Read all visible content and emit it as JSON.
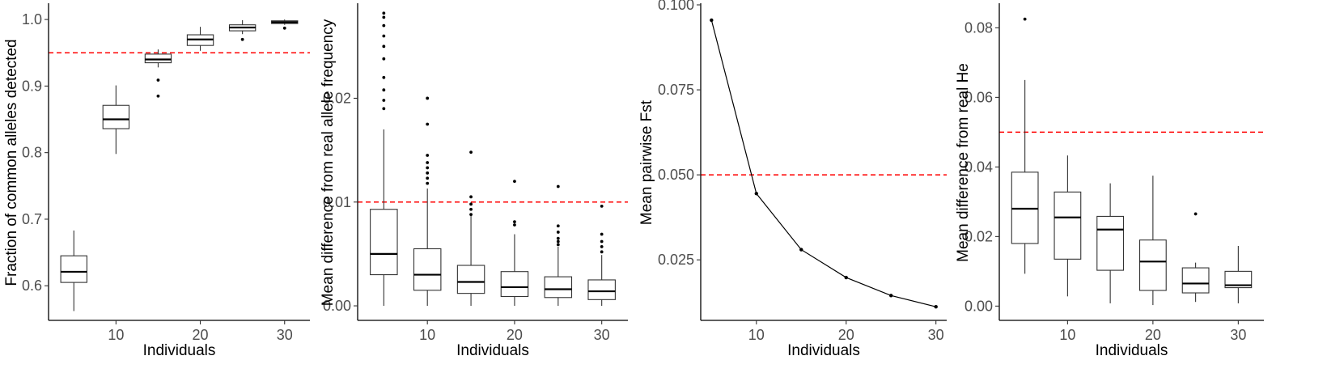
{
  "chart_data": [
    {
      "type": "box",
      "xlabel": "Individuals",
      "ylabel": "Fraction of common alleles detected",
      "x_ticks": [
        10,
        20,
        30
      ],
      "y_ticks": [
        "0.6",
        "0.7",
        "0.8",
        "0.9",
        "1.0"
      ],
      "y_tick_values": [
        0.6,
        0.7,
        0.8,
        0.9,
        1.0
      ],
      "xlim": [
        2,
        33
      ],
      "ylim": [
        0.548,
        1.022
      ],
      "grid": false,
      "reference_line": {
        "y": 0.95,
        "color": "#ff0000",
        "style": "dashed"
      },
      "boxes": [
        {
          "x": 5,
          "min": 0.562,
          "q1": 0.605,
          "median": 0.621,
          "q3": 0.645,
          "max": 0.683,
          "outliers": []
        },
        {
          "x": 10,
          "min": 0.798,
          "q1": 0.836,
          "median": 0.85,
          "q3": 0.871,
          "max": 0.901,
          "outliers": []
        },
        {
          "x": 15,
          "min": 0.928,
          "q1": 0.935,
          "median": 0.94,
          "q3": 0.948,
          "max": 0.955,
          "outliers": [
            0.909,
            0.885
          ]
        },
        {
          "x": 20,
          "min": 0.953,
          "q1": 0.961,
          "median": 0.97,
          "q3": 0.977,
          "max": 0.989,
          "outliers": []
        },
        {
          "x": 25,
          "min": 0.978,
          "q1": 0.983,
          "median": 0.988,
          "q3": 0.992,
          "max": 0.999,
          "outliers": [
            0.97
          ]
        },
        {
          "x": 30,
          "min": 0.992,
          "q1": 0.994,
          "median": 0.996,
          "q3": 0.998,
          "max": 1.0,
          "outliers": [
            0.987
          ]
        }
      ]
    },
    {
      "type": "box",
      "xlabel": "Individuals",
      "ylabel": "Mean difference from real allele frequency",
      "x_ticks": [
        10,
        20,
        30
      ],
      "y_ticks": [
        "0.00",
        "0.01",
        "0.02"
      ],
      "y_tick_values": [
        0.0,
        0.01,
        0.02
      ],
      "xlim": [
        2,
        33
      ],
      "ylim": [
        -0.0014,
        0.029
      ],
      "grid": false,
      "reference_line": {
        "y": 0.01,
        "color": "#ff0000",
        "style": "dashed"
      },
      "boxes": [
        {
          "x": 5,
          "min": 0.0,
          "q1": 0.003,
          "median": 0.005,
          "q3": 0.0093,
          "max": 0.017,
          "outliers": [
            0.019,
            0.0198,
            0.0208,
            0.022,
            0.0238,
            0.025,
            0.026,
            0.027,
            0.0278,
            0.0282
          ]
        },
        {
          "x": 10,
          "min": 0.0,
          "q1": 0.0015,
          "median": 0.003,
          "q3": 0.0055,
          "max": 0.0113,
          "outliers": [
            0.0118,
            0.0123,
            0.0128,
            0.0133,
            0.0138,
            0.0145,
            0.0175,
            0.02
          ]
        },
        {
          "x": 15,
          "min": 0.0,
          "q1": 0.0012,
          "median": 0.0023,
          "q3": 0.0039,
          "max": 0.0087,
          "outliers": [
            0.0088,
            0.0093,
            0.0098,
            0.0105,
            0.0148
          ]
        },
        {
          "x": 20,
          "min": 0.0,
          "q1": 0.0009,
          "median": 0.0018,
          "q3": 0.0033,
          "max": 0.0069,
          "outliers": [
            0.0078,
            0.0081,
            0.012
          ]
        },
        {
          "x": 25,
          "min": 0.0,
          "q1": 0.0008,
          "median": 0.0016,
          "q3": 0.0028,
          "max": 0.0057,
          "outliers": [
            0.0059,
            0.0062,
            0.0065,
            0.0071,
            0.0077,
            0.0115
          ]
        },
        {
          "x": 30,
          "min": 0.0,
          "q1": 0.0006,
          "median": 0.0014,
          "q3": 0.0025,
          "max": 0.0049,
          "outliers": [
            0.0052,
            0.0057,
            0.0062,
            0.0069,
            0.0096
          ]
        }
      ]
    },
    {
      "type": "line",
      "xlabel": "Individuals",
      "ylabel": "Mean pairwise Fst",
      "x_ticks": [
        10,
        20,
        30
      ],
      "y_ticks": [
        "0.025",
        "0.050",
        "0.075",
        "0.100"
      ],
      "y_tick_values": [
        0.025,
        0.05,
        0.075,
        0.1
      ],
      "x": [
        5,
        10,
        15,
        20,
        25,
        30
      ],
      "y": [
        0.0955,
        0.0445,
        0.028,
        0.0198,
        0.0145,
        0.0112
      ],
      "xlim": [
        3.8,
        31.2
      ],
      "ylim": [
        0.0072,
        0.1
      ],
      "grid": false,
      "reference_line": {
        "y": 0.05,
        "color": "#ff0000",
        "style": "dashed"
      }
    },
    {
      "type": "box",
      "xlabel": "Individuals",
      "ylabel": "Mean difference from real He",
      "x_ticks": [
        10,
        20,
        30
      ],
      "y_ticks": [
        "0.00",
        "0.02",
        "0.04",
        "0.06",
        "0.08"
      ],
      "y_tick_values": [
        0.0,
        0.02,
        0.04,
        0.06,
        0.08
      ],
      "xlim": [
        2,
        33
      ],
      "ylim": [
        -0.0041,
        0.0866
      ],
      "grid": false,
      "reference_line": {
        "y": 0.05,
        "color": "#ff0000",
        "style": "dashed"
      },
      "boxes": [
        {
          "x": 5,
          "min": 0.0093,
          "q1": 0.018,
          "median": 0.028,
          "q3": 0.0385,
          "max": 0.065,
          "outliers": [
            0.0825
          ]
        },
        {
          "x": 10,
          "min": 0.0028,
          "q1": 0.0135,
          "median": 0.0255,
          "q3": 0.0328,
          "max": 0.0433,
          "outliers": []
        },
        {
          "x": 15,
          "min": 0.0008,
          "q1": 0.0103,
          "median": 0.022,
          "q3": 0.0258,
          "max": 0.0353,
          "outliers": []
        },
        {
          "x": 20,
          "min": 0.0003,
          "q1": 0.0045,
          "median": 0.0128,
          "q3": 0.019,
          "max": 0.0375,
          "outliers": []
        },
        {
          "x": 25,
          "min": 0.0012,
          "q1": 0.0038,
          "median": 0.0065,
          "q3": 0.011,
          "max": 0.0125,
          "outliers": [
            0.0265
          ]
        },
        {
          "x": 30,
          "min": 0.0008,
          "q1": 0.0053,
          "median": 0.006,
          "q3": 0.01,
          "max": 0.0173,
          "outliers": []
        }
      ]
    }
  ]
}
